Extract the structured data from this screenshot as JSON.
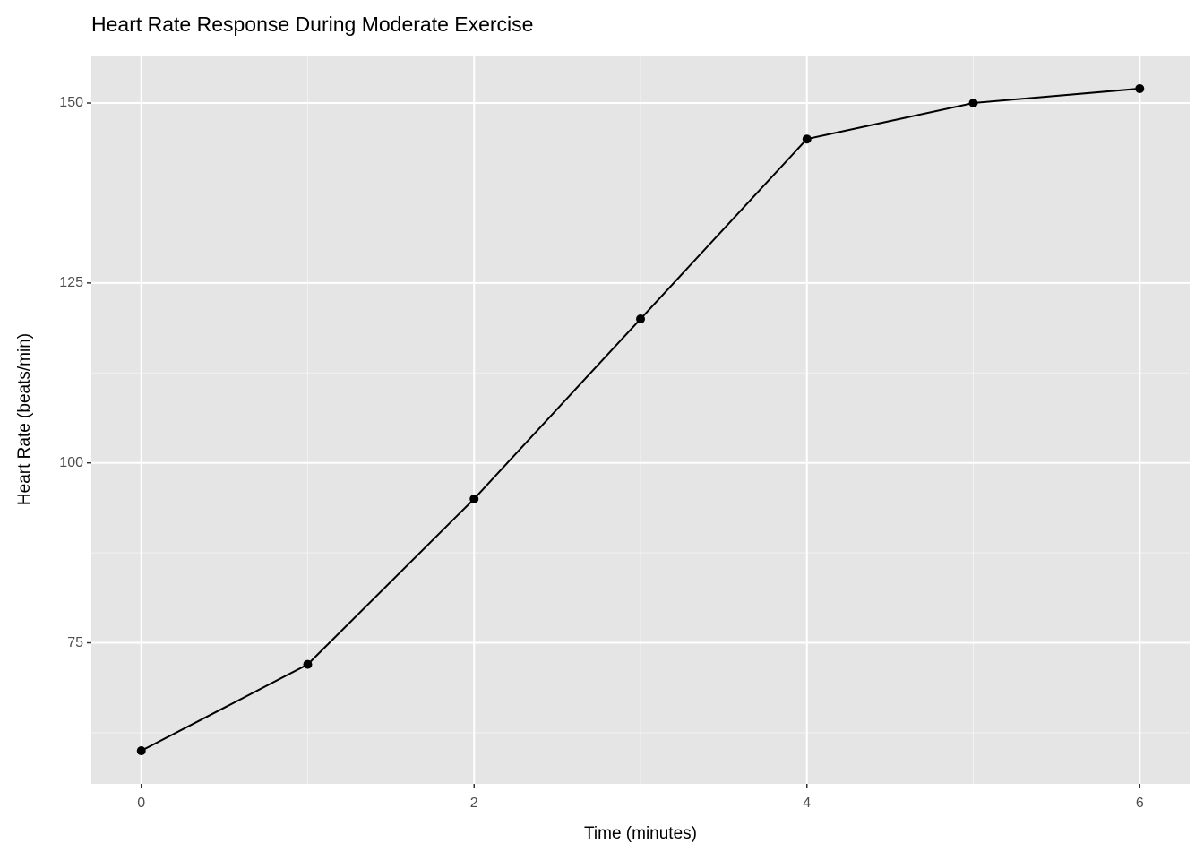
{
  "chart_data": {
    "type": "line",
    "title": "Heart Rate Response During Moderate Exercise",
    "x_label": "Time (minutes)",
    "y_label": "Heart Rate (beats/min)",
    "x": [
      0,
      1,
      2,
      3,
      4,
      5,
      6
    ],
    "series": [
      {
        "color": "#000000",
        "values": [
          60,
          72,
          95,
          120,
          145,
          150,
          152
        ]
      }
    ],
    "xlim": [
      -0.3,
      6.3
    ],
    "xticks": [
      0,
      2,
      4,
      6
    ],
    "xminor": [
      1,
      3,
      5
    ],
    "ylim": [
      55.4,
      156.6
    ],
    "yticks": [
      75,
      100,
      125,
      150
    ],
    "yminor": [
      62.5,
      87.5,
      112.5,
      137.5
    ],
    "grid": true,
    "markers": true
  }
}
